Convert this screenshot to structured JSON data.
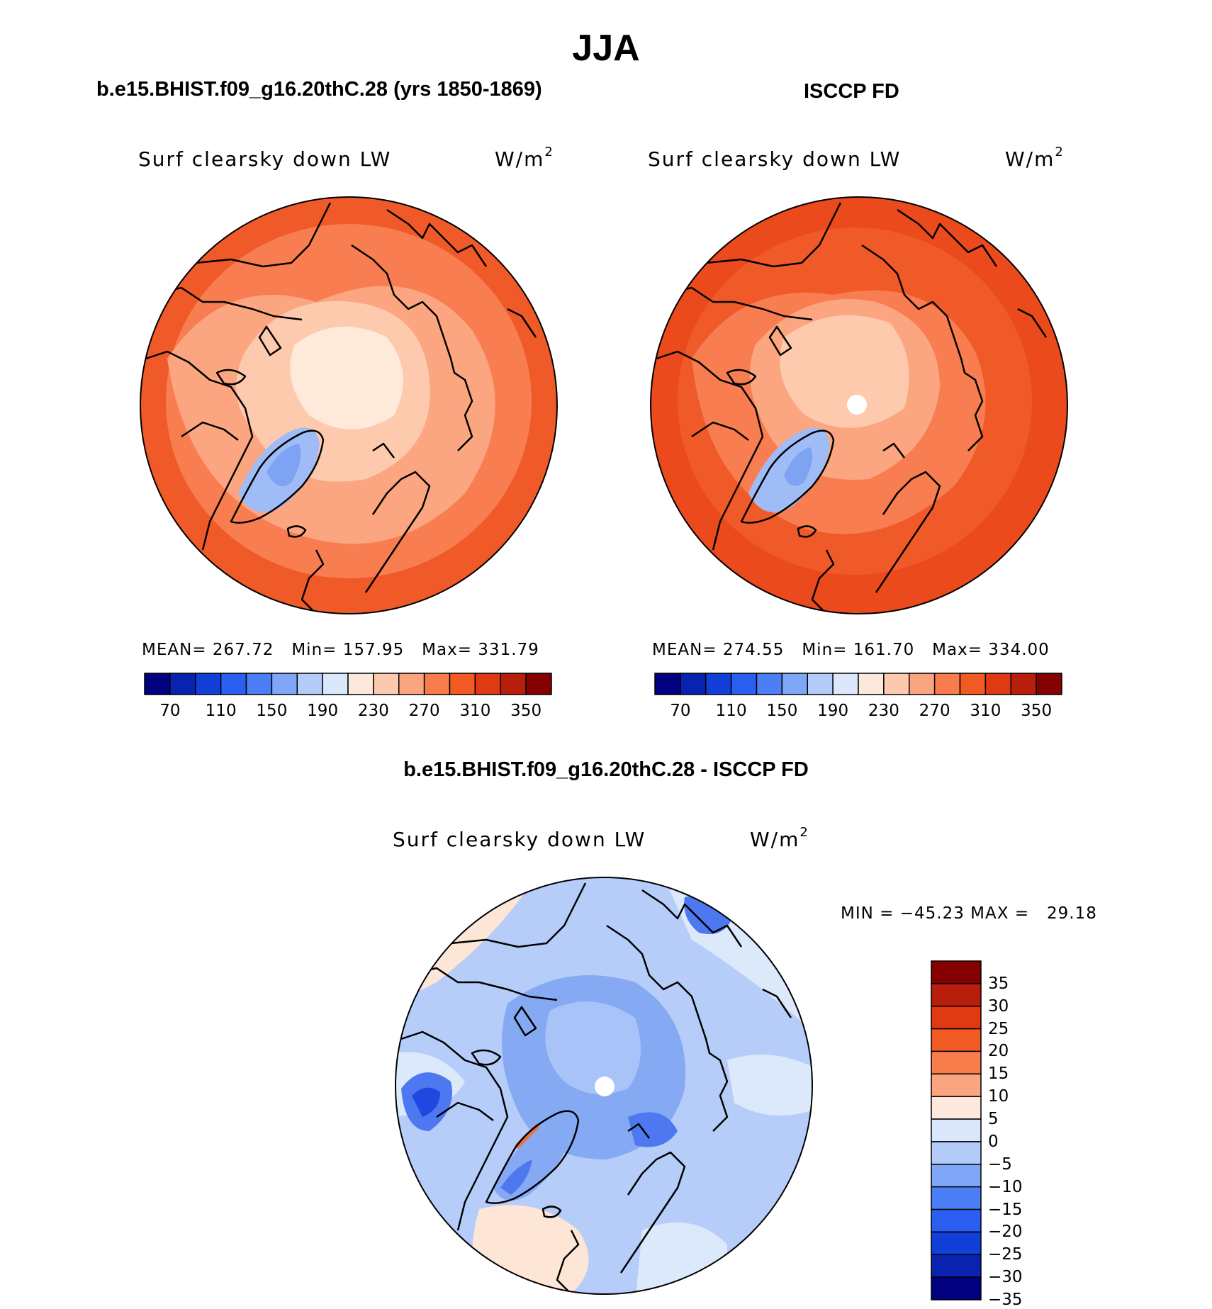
{
  "figure": {
    "title": "JJA",
    "panels": [
      {
        "id": "model",
        "title": "b.e15.BHIST.f09_g16.20thC.28 (yrs 1850-1869)",
        "variable": "Surf clearsky down LW",
        "units": "W/m",
        "units_sup": "2",
        "stats": {
          "mean_label": "MEAN=",
          "mean": "267.72",
          "min_label": "Min=",
          "min": "157.95",
          "max_label": "Max=",
          "max": "331.79"
        }
      },
      {
        "id": "obs",
        "title": "ISCCP FD",
        "variable": "Surf clearsky down LW",
        "units": "W/m",
        "units_sup": "2",
        "stats": {
          "mean_label": "MEAN=",
          "mean": "274.55",
          "min_label": "Min=",
          "min": "161.70",
          "max_label": "Max=",
          "max": "334.00"
        }
      },
      {
        "id": "diff",
        "title": "b.e15.BHIST.f09_g16.20thC.28 - ISCCP FD",
        "variable": "Surf clearsky down LW",
        "units": "W/m",
        "units_sup": "2",
        "stats": {
          "min_label": "MIN =",
          "min": "−45.23",
          "max_label": "MAX =",
          "max": "29.18"
        }
      }
    ],
    "colorbar_main": {
      "colors": [
        "#000080",
        "#0a22b0",
        "#1040d8",
        "#2a5ff2",
        "#4c7ff5",
        "#7fa6f7",
        "#b3cbf9",
        "#dbe8fb",
        "#fde9db",
        "#fcc9ae",
        "#fba580",
        "#f87c4c",
        "#f25a23",
        "#e03a12",
        "#b81e0c",
        "#850000"
      ],
      "tick_labels": [
        "70",
        "110",
        "150",
        "190",
        "230",
        "270",
        "310",
        "350"
      ]
    },
    "colorbar_diff": {
      "colors": [
        "#850000",
        "#b81e0c",
        "#e03a12",
        "#f25a23",
        "#f87c4c",
        "#fba580",
        "#fde9db",
        "#dbe8fb",
        "#b3cbf9",
        "#7fa6f7",
        "#4c7ff5",
        "#2a5ff2",
        "#1040d8",
        "#0a22b0",
        "#000080"
      ],
      "tick_labels": [
        "35",
        "30",
        "25",
        "20",
        "15",
        "10",
        "5",
        "0",
        "−5",
        "−10",
        "−15",
        "−20",
        "−25",
        "−30",
        "−35"
      ]
    },
    "map_colors": {
      "model_outer": "#f05a28",
      "model_ring": "#f87d50",
      "model_mid": "#fba680",
      "model_inner": "#fdcaae",
      "model_pole": "#fee9da",
      "greenland_blue": "#9fbcf6",
      "greenland_core": "#7ea3f3",
      "obs_outer": "#ea4a1c",
      "diff_base": "#b6cdf9",
      "diff_light": "#dce9fb",
      "diff_core": "#86a9f4",
      "diff_dark": "#4e78ef",
      "diff_warm": "#fde6d6"
    }
  }
}
